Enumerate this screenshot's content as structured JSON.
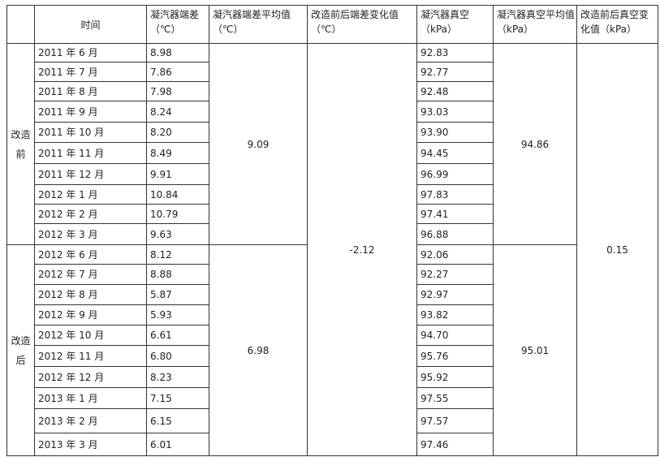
{
  "header": [
    [
      "时间"
    ],
    [
      "凝汽器端差",
      "（℃）"
    ],
    [
      "凝汽器端差平均值",
      "（℃）"
    ],
    [
      "改造前后端差变化值",
      "（℃）"
    ],
    [
      "凝汽器真空",
      "（kPa）"
    ],
    [
      "凝汽器真空平均值",
      "（kPa）"
    ],
    [
      "改造前后真空变",
      "化值（kPa）"
    ]
  ],
  "groups": [
    {
      "label": "改造前",
      "avg_diff": "9.09",
      "avg_vacuum": "94.86",
      "rows": [
        [
          "2011 年 6 月",
          "8.98",
          "92.83"
        ],
        [
          "2011 年 7 月",
          "7.86",
          "92.77"
        ],
        [
          "2011 年 8 月",
          "7.98",
          "92.48"
        ],
        [
          "2011 年 9 月",
          "8.24",
          "93.03"
        ],
        [
          "2011 年 10 月",
          "8.20",
          "93.90"
        ],
        [
          "2011 年 11 月",
          "8.49",
          "94.45"
        ],
        [
          "2011 年 12 月",
          "9.91",
          "96.99"
        ],
        [
          "2012 年 1 月",
          "10.84",
          "97.83"
        ],
        [
          "2012 年 2 月",
          "10.79",
          "97.41"
        ],
        [
          "2012 年 3 月",
          "9.63",
          "96.88"
        ]
      ]
    },
    {
      "label": "改造后",
      "avg_diff": "6.98",
      "avg_vacuum": "95.01",
      "rows": [
        [
          "2012 年 6 月",
          "8.12",
          "92.06"
        ],
        [
          "2012 年 7 月",
          "8.88",
          "92.27"
        ],
        [
          "2012 年 8 月",
          "5.87",
          "92.97"
        ],
        [
          "2012 年 9 月",
          "5.93",
          "93.82"
        ],
        [
          "2012 年 10 月",
          "6.61",
          "94.70"
        ],
        [
          "2012 年 11 月",
          "6.80",
          "95.76"
        ],
        [
          "2012 年 12 月",
          "8.23",
          "95.92"
        ],
        [
          "2013 年 1 月",
          "7.15",
          "97.55"
        ],
        [
          "2013 年 2 月",
          "6.15",
          "97.57"
        ],
        [
          "2013 年 3 月",
          "6.01",
          "97.46"
        ]
      ]
    }
  ],
  "diff_change": "-2.12",
  "vacuum_change": "0.15"
}
